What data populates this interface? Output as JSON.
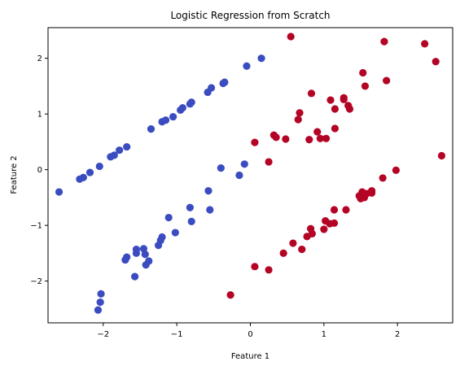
{
  "chart_data": {
    "type": "scatter",
    "title": "Logistic Regression from Scratch",
    "xlabel": "Feature 1",
    "ylabel": "Feature 2",
    "xlim": [
      -2.75,
      2.75
    ],
    "ylim": [
      -2.75,
      2.55
    ],
    "xticks": [
      -2,
      -1,
      0,
      1,
      2
    ],
    "yticks": [
      -2,
      -1,
      0,
      1,
      2
    ],
    "xtick_labels": [
      "−2",
      "−1",
      "0",
      "1",
      "2"
    ],
    "ytick_labels": [
      "−2",
      "−1",
      "0",
      "1",
      "2"
    ],
    "grid": false,
    "series": [
      {
        "color": "#3b4cc0",
        "points": [
          [
            -2.6,
            -0.4
          ],
          [
            -2.32,
            -0.17
          ],
          [
            -2.27,
            -0.14
          ],
          [
            -2.18,
            -0.05
          ],
          [
            -2.05,
            0.06
          ],
          [
            -1.9,
            0.23
          ],
          [
            -1.85,
            0.26
          ],
          [
            -1.78,
            0.35
          ],
          [
            -1.68,
            0.41
          ],
          [
            -1.35,
            0.73
          ],
          [
            -1.2,
            0.86
          ],
          [
            -1.15,
            0.89
          ],
          [
            -1.05,
            0.95
          ],
          [
            -0.95,
            1.07
          ],
          [
            -0.92,
            1.11
          ],
          [
            -0.82,
            1.18
          ],
          [
            -0.8,
            1.21
          ],
          [
            -0.58,
            1.39
          ],
          [
            -0.53,
            1.47
          ],
          [
            -0.37,
            1.55
          ],
          [
            -0.35,
            1.57
          ],
          [
            -0.05,
            1.86
          ],
          [
            0.15,
            2.0
          ],
          [
            -0.4,
            0.03
          ],
          [
            -0.15,
            -0.1
          ],
          [
            -0.08,
            0.1
          ],
          [
            -0.57,
            -0.38
          ],
          [
            -0.82,
            -0.68
          ],
          [
            -0.55,
            -0.72
          ],
          [
            -1.11,
            -0.86
          ],
          [
            -0.8,
            -0.93
          ],
          [
            -1.02,
            -1.13
          ],
          [
            -1.2,
            -1.21
          ],
          [
            -1.22,
            -1.27
          ],
          [
            -1.25,
            -1.36
          ],
          [
            -1.45,
            -1.42
          ],
          [
            -1.55,
            -1.43
          ],
          [
            -1.43,
            -1.52
          ],
          [
            -1.55,
            -1.5
          ],
          [
            -1.68,
            -1.57
          ],
          [
            -1.7,
            -1.62
          ],
          [
            -1.38,
            -1.64
          ],
          [
            -1.42,
            -1.71
          ],
          [
            -1.57,
            -1.92
          ],
          [
            -2.03,
            -2.23
          ],
          [
            -2.04,
            -2.38
          ],
          [
            -2.07,
            -2.52
          ]
        ]
      },
      {
        "color": "#b40426",
        "points": [
          [
            0.55,
            2.39
          ],
          [
            1.82,
            2.3
          ],
          [
            2.37,
            2.26
          ],
          [
            2.52,
            1.94
          ],
          [
            1.53,
            1.74
          ],
          [
            1.85,
            1.6
          ],
          [
            1.56,
            1.5
          ],
          [
            0.83,
            1.37
          ],
          [
            1.09,
            1.25
          ],
          [
            1.27,
            1.29
          ],
          [
            1.27,
            1.26
          ],
          [
            1.33,
            1.15
          ],
          [
            1.35,
            1.09
          ],
          [
            1.15,
            1.09
          ],
          [
            0.67,
            1.02
          ],
          [
            0.65,
            0.9
          ],
          [
            0.32,
            0.62
          ],
          [
            0.35,
            0.58
          ],
          [
            0.48,
            0.55
          ],
          [
            0.91,
            0.68
          ],
          [
            1.15,
            0.74
          ],
          [
            0.8,
            0.54
          ],
          [
            0.95,
            0.56
          ],
          [
            1.03,
            0.56
          ],
          [
            0.06,
            0.49
          ],
          [
            0.25,
            0.14
          ],
          [
            2.6,
            0.25
          ],
          [
            1.98,
            -0.01
          ],
          [
            1.8,
            -0.15
          ],
          [
            1.48,
            -0.47
          ],
          [
            1.52,
            -0.4
          ],
          [
            1.58,
            -0.43
          ],
          [
            1.65,
            -0.38
          ],
          [
            1.55,
            -0.5
          ],
          [
            1.5,
            -0.52
          ],
          [
            1.65,
            -0.42
          ],
          [
            1.14,
            -0.72
          ],
          [
            1.3,
            -0.72
          ],
          [
            1.02,
            -0.92
          ],
          [
            1.08,
            -0.97
          ],
          [
            1.14,
            -0.96
          ],
          [
            0.82,
            -1.06
          ],
          [
            1.0,
            -1.07
          ],
          [
            0.84,
            -1.15
          ],
          [
            0.77,
            -1.2
          ],
          [
            0.58,
            -1.32
          ],
          [
            0.7,
            -1.43
          ],
          [
            0.45,
            -1.5
          ],
          [
            0.06,
            -1.74
          ],
          [
            0.25,
            -1.8
          ],
          [
            -0.27,
            -2.25
          ]
        ]
      }
    ]
  }
}
